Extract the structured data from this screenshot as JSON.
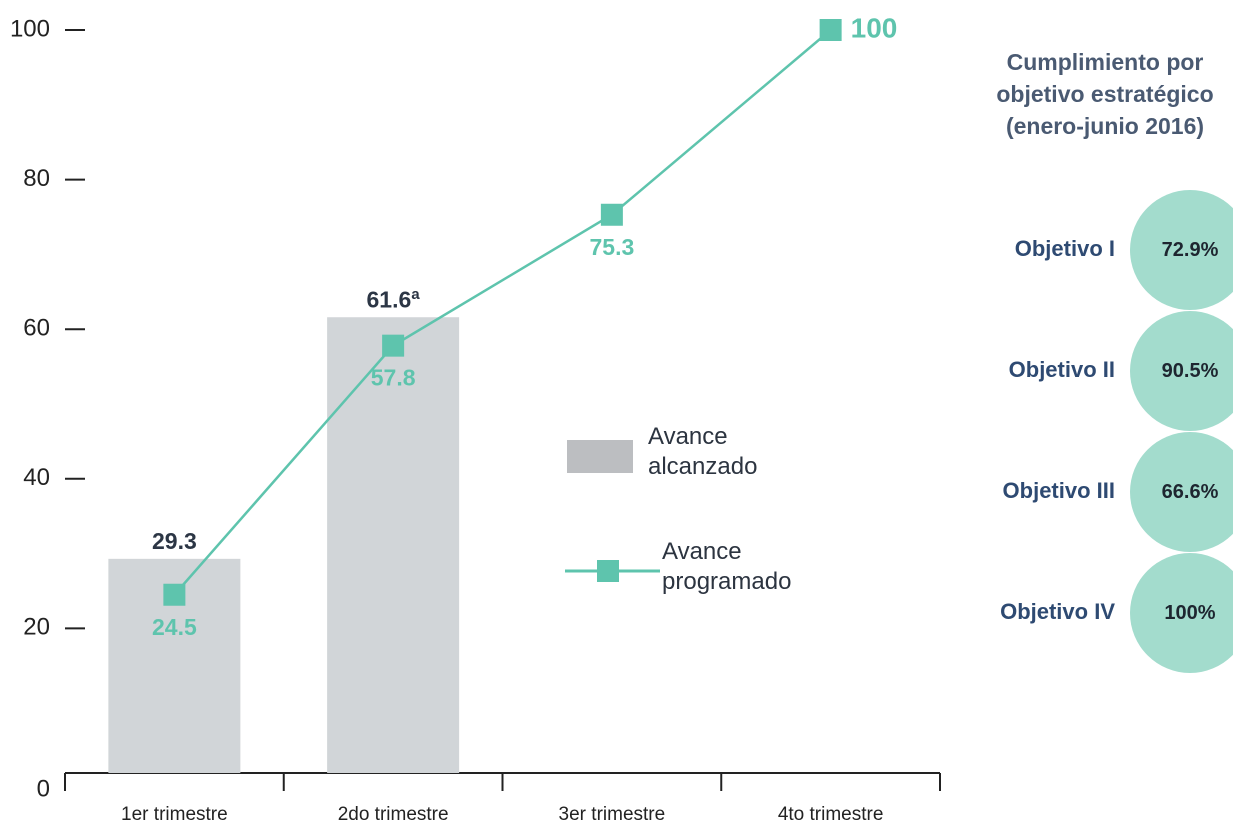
{
  "chart_data": {
    "type": "bar",
    "categories": [
      "1er trimestre",
      "2do trimestre",
      "3er trimestre",
      "4to trimestre"
    ],
    "series": [
      {
        "name": "Avance alcanzado",
        "type": "bar",
        "color": "#d1d5d8",
        "values": [
          29.3,
          61.6,
          null,
          null
        ],
        "value_labels": [
          "29.3",
          "61.6ª",
          null,
          null
        ]
      },
      {
        "name": "Avance programado",
        "type": "line",
        "color": "#5ec4ad",
        "values": [
          24.5,
          57.8,
          75.3,
          100
        ]
      }
    ],
    "ylim": [
      0,
      100
    ],
    "yticks": [
      0,
      20,
      40,
      60,
      80,
      100
    ]
  },
  "panel": {
    "title": "Cumplimiento por objetivo estratégico (enero-junio 2016)",
    "items": [
      {
        "label": "Objetivo I",
        "value": "72.9%"
      },
      {
        "label": "Objetivo II",
        "value": "90.5%"
      },
      {
        "label": "Objetivo III",
        "value": "66.6%"
      },
      {
        "label": "Objetivo IV",
        "value": "100%"
      }
    ]
  }
}
